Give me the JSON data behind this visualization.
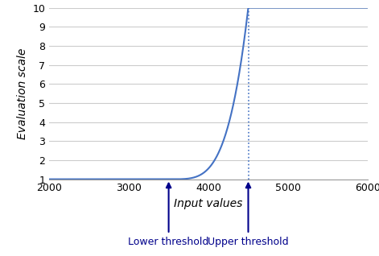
{
  "xlim": [
    2000,
    6000
  ],
  "ylim": [
    1,
    10
  ],
  "xticks": [
    2000,
    3000,
    4000,
    5000,
    6000
  ],
  "yticks": [
    1,
    2,
    3,
    4,
    5,
    6,
    7,
    8,
    9,
    10
  ],
  "xlabel": "Input values",
  "ylabel": "Evaluation scale",
  "lower_threshold": 3500,
  "upper_threshold": 4500,
  "y_min": 1,
  "y_max": 10,
  "curve_color": "#4472C4",
  "threshold_line_color": "#4472C4",
  "annotation_color": "#00008B",
  "bg_color": "#ffffff",
  "grid_color": "#cccccc",
  "label_lower": "Lower threshold",
  "label_upper": "Upper threshold",
  "figsize": [
    4.71,
    3.18
  ],
  "dpi": 100,
  "power": 4
}
